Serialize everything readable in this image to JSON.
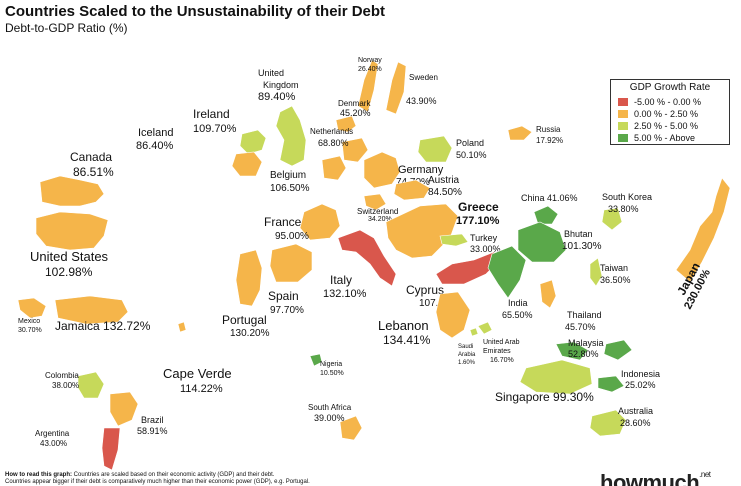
{
  "title": "Countries Scaled to the Unsustainability of their Debt",
  "subtitle": "Debt-to-GDP Ratio (%)",
  "colors": {
    "red": "#d9574c",
    "orange": "#f5b54a",
    "lime": "#c6d95a",
    "green": "#5aa84a"
  },
  "legend": {
    "title": "GDP Growth Rate",
    "items": [
      {
        "label": "-5.00 %  -  0.00 %",
        "color": "#d9574c"
      },
      {
        "label": "0.00 %  -  2.50 %",
        "color": "#f5b54a"
      },
      {
        "label": "2.50 %  -  5.00 %",
        "color": "#c6d95a"
      },
      {
        "label": "5.00 %  -  Above",
        "color": "#5aa84a"
      }
    ]
  },
  "countries": [
    {
      "name": "Canada",
      "value": "86.51%",
      "growth": "orange"
    },
    {
      "name": "United States",
      "value": "102.98%",
      "growth": "orange"
    },
    {
      "name": "Mexico",
      "value": "30.70%",
      "growth": "orange"
    },
    {
      "name": "Jamaica",
      "value": "132.72%",
      "growth": "orange"
    },
    {
      "name": "Colombia",
      "value": "38.00%",
      "growth": "lime"
    },
    {
      "name": "Brazil",
      "value": "58.91%",
      "growth": "orange"
    },
    {
      "name": "Argentina",
      "value": "43.00%",
      "growth": "red"
    },
    {
      "name": "Iceland",
      "value": "86.40%",
      "growth": "lime"
    },
    {
      "name": "Ireland",
      "value": "109.70%",
      "growth": "orange"
    },
    {
      "name": "United Kingdom",
      "value": "89.40%",
      "growth": "lime"
    },
    {
      "name": "Norway",
      "value": "26.40%",
      "growth": "orange"
    },
    {
      "name": "Sweden",
      "value": "43.90%",
      "growth": "orange"
    },
    {
      "name": "Denmark",
      "value": "45.20%",
      "growth": "orange"
    },
    {
      "name": "Netherlands",
      "value": "68.80%",
      "growth": "orange"
    },
    {
      "name": "Belgium",
      "value": "106.50%",
      "growth": "orange"
    },
    {
      "name": "France",
      "value": "95.00%",
      "growth": "orange"
    },
    {
      "name": "Germany",
      "value": "74.70%",
      "growth": "orange"
    },
    {
      "name": "Poland",
      "value": "50.10%",
      "growth": "lime"
    },
    {
      "name": "Russia",
      "value": "17.92%",
      "growth": "orange"
    },
    {
      "name": "Austria",
      "value": "84.50%",
      "growth": "orange"
    },
    {
      "name": "Switzerland",
      "value": "34.20%",
      "growth": "orange"
    },
    {
      "name": "Greece",
      "value": "177.10%",
      "growth": "orange"
    },
    {
      "name": "Italy",
      "value": "132.10%",
      "growth": "red"
    },
    {
      "name": "Spain",
      "value": "97.70%",
      "growth": "orange"
    },
    {
      "name": "Portugal",
      "value": "130.20%",
      "growth": "orange"
    },
    {
      "name": "Cape Verde",
      "value": "114.22%",
      "growth": "orange"
    },
    {
      "name": "Turkey",
      "value": "33.00%",
      "growth": "lime"
    },
    {
      "name": "Cyprus",
      "value": "107.50%",
      "growth": "red"
    },
    {
      "name": "Lebanon",
      "value": "134.41%",
      "growth": "orange"
    },
    {
      "name": "Saudi Arabia",
      "value": "1.60%",
      "growth": "lime"
    },
    {
      "name": "United Arab Emirates",
      "value": "16.70%",
      "growth": "lime"
    },
    {
      "name": "Nigeria",
      "value": "10.50%",
      "growth": "green"
    },
    {
      "name": "South Africa",
      "value": "39.00%",
      "growth": "orange"
    },
    {
      "name": "China",
      "value": "41.06%",
      "growth": "green"
    },
    {
      "name": "Bhutan",
      "value": "101.30%",
      "growth": "green"
    },
    {
      "name": "India",
      "value": "65.50%",
      "growth": "green"
    },
    {
      "name": "Thailand",
      "value": "45.70%",
      "growth": "orange"
    },
    {
      "name": "Malaysia",
      "value": "52.80%",
      "growth": "green"
    },
    {
      "name": "Singapore",
      "value": "99.30%",
      "growth": "lime"
    },
    {
      "name": "Indonesia",
      "value": "25.02%",
      "growth": "green"
    },
    {
      "name": "South Korea",
      "value": "33.80%",
      "growth": "lime"
    },
    {
      "name": "Taiwan",
      "value": "36.50%",
      "growth": "lime"
    },
    {
      "name": "Japan",
      "value": "230.00%",
      "growth": "orange"
    },
    {
      "name": "Australia",
      "value": "28.60%",
      "growth": "lime"
    }
  ],
  "footnote": {
    "bold": "How to read this graph:",
    "line1": " Countries are scaled based on their economic activity (GDP) and their debt.",
    "line2": "Countries appear bigger if their debt is comparatively much higher than their economic power (GDP), e.g. Portugal."
  },
  "brand": {
    "name": "howmuch",
    "suffix": ".net"
  }
}
